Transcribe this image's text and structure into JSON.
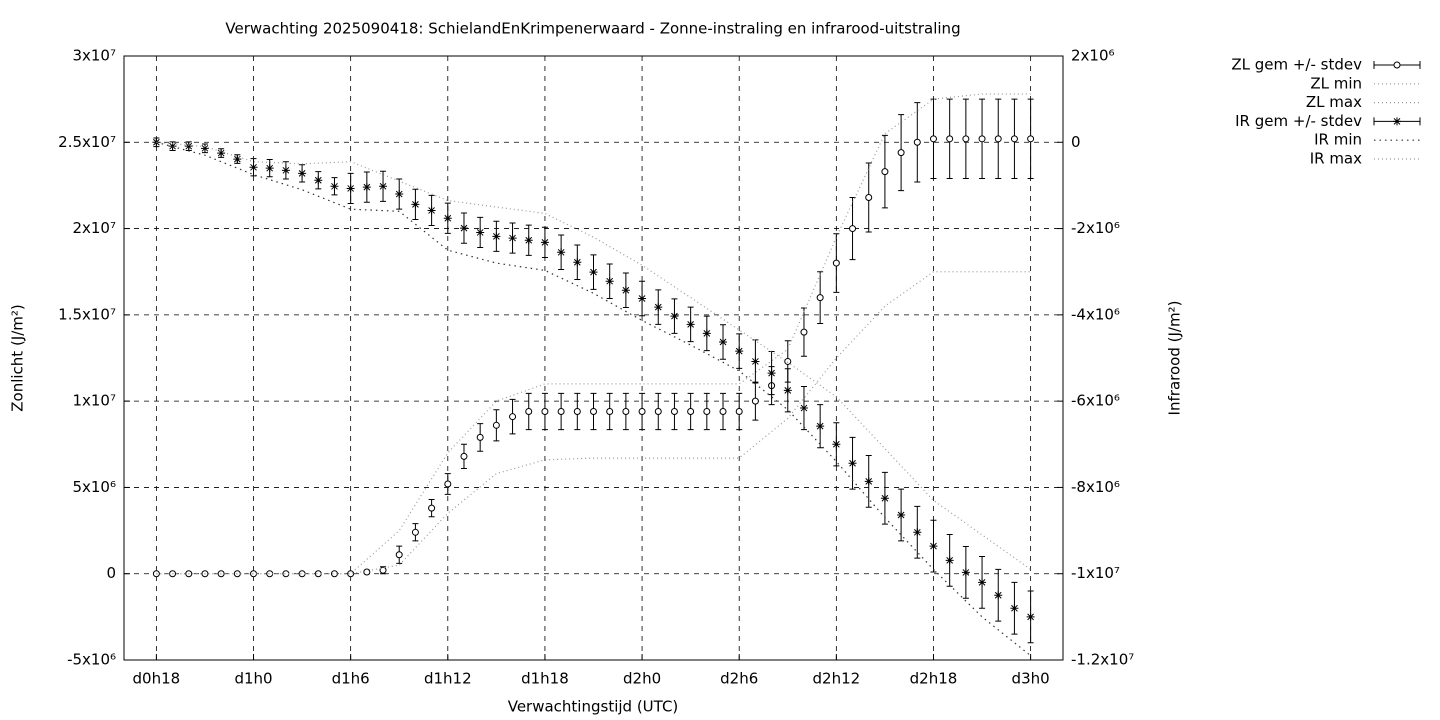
{
  "chart_data": {
    "type": "line",
    "title": "Verwachting 2025090418: SchielandEnKrimpenerwaard - Zonne-instraling en infrarood-uitstraling",
    "x_label": "Verwachtingstijd (UTC)",
    "y_label": "Zonlicht (J/m²)",
    "y2_label": "Infrarood (J/m²)",
    "xlim": [
      16,
      74
    ],
    "xticks": [
      {
        "value": 18,
        "label": "d0h18"
      },
      {
        "value": 24,
        "label": "d1h0"
      },
      {
        "value": 30,
        "label": "d1h6"
      },
      {
        "value": 36,
        "label": "d1h12"
      },
      {
        "value": 42,
        "label": "d1h18"
      },
      {
        "value": 48,
        "label": "d2h0"
      },
      {
        "value": 54,
        "label": "d2h6"
      },
      {
        "value": 60,
        "label": "d2h12"
      },
      {
        "value": 66,
        "label": "d2h18"
      },
      {
        "value": 72,
        "label": "d3h0"
      }
    ],
    "ylim": [
      -5000000,
      30000000
    ],
    "yticks": [
      {
        "value": -5000000,
        "label": "-5x10⁶"
      },
      0,
      {
        "value": 5000000,
        "label": "5x10⁶"
      },
      {
        "value": 10000000,
        "label": "1x10⁷"
      },
      {
        "value": 15000000,
        "label": "1.5x10⁷"
      },
      {
        "value": 20000000,
        "label": "2x10⁷"
      },
      {
        "value": 25000000,
        "label": "2.5x10⁷"
      },
      {
        "value": 30000000,
        "label": "3x10⁷"
      }
    ],
    "y2lim": [
      -12000000,
      2000000
    ],
    "y2ticks": [
      {
        "value": -12000000,
        "label": "-1.2x10⁷"
      },
      {
        "value": -10000000,
        "label": "-1x10⁷"
      },
      {
        "value": -8000000,
        "label": "-8x10⁶"
      },
      {
        "value": -6000000,
        "label": "-6x10⁶"
      },
      {
        "value": -4000000,
        "label": "-4x10⁶"
      },
      {
        "value": -2000000,
        "label": "-2x10⁶"
      },
      0,
      {
        "value": 2000000,
        "label": "2x10⁶"
      }
    ],
    "grid": true,
    "legend": "top-right",
    "series": [
      {
        "name": "ZL gem +/- stdev",
        "color": "#000000",
        "marker": "circle",
        "axis": "y",
        "x": [
          18,
          19,
          20,
          21,
          22,
          23,
          24,
          25,
          26,
          27,
          28,
          29,
          30,
          31,
          32,
          33,
          34,
          35,
          36,
          37,
          38,
          39,
          40,
          41,
          42,
          43,
          44,
          45,
          46,
          47,
          48,
          49,
          50,
          51,
          52,
          53,
          54,
          55,
          56,
          57,
          58,
          59,
          60,
          61,
          62,
          63,
          64,
          65,
          66,
          67,
          68,
          69,
          70,
          71,
          72
        ],
        "values": [
          0,
          0,
          0,
          0,
          0,
          0,
          0,
          0,
          0,
          0,
          0,
          0,
          0,
          100000,
          200000,
          1100000,
          2400000,
          3800000,
          5200000,
          6800000,
          7900000,
          8600000,
          9100000,
          9400000,
          9400000,
          9400000,
          9400000,
          9400000,
          9400000,
          9400000,
          9400000,
          9400000,
          9400000,
          9400000,
          9400000,
          9400000,
          9400000,
          10000000,
          10900000,
          12300000,
          14000000,
          16000000,
          18000000,
          20000000,
          21800000,
          23300000,
          24400000,
          25000000,
          25200000,
          25200000,
          25200000,
          25200000,
          25200000,
          25200000,
          25200000
        ],
        "errors": [
          0,
          0,
          0,
          0,
          0,
          0,
          0,
          0,
          0,
          0,
          0,
          0,
          0,
          100000,
          200000,
          500000,
          500000,
          500000,
          600000,
          700000,
          800000,
          900000,
          1000000,
          1050000,
          1050000,
          1050000,
          1050000,
          1050000,
          1050000,
          1050000,
          1050000,
          1050000,
          1050000,
          1050000,
          1050000,
          1050000,
          1050000,
          1100000,
          1100000,
          1200000,
          1400000,
          1500000,
          1700000,
          1800000,
          2000000,
          2100000,
          2200000,
          2300000,
          2300000,
          2300000,
          2300000,
          2300000,
          2300000,
          2300000,
          2300000
        ]
      },
      {
        "name": "ZL min",
        "color": "#999999",
        "dash": "1 3",
        "axis": "y",
        "x": [
          18,
          21,
          24,
          27,
          30,
          33,
          36,
          39,
          42,
          45,
          48,
          51,
          54,
          57,
          60,
          63,
          66,
          69,
          72
        ],
        "values": [
          0,
          0,
          0,
          0,
          0,
          500000,
          3500000,
          5800000,
          6600000,
          6700000,
          6700000,
          6700000,
          6700000,
          9000000,
          12500000,
          15500000,
          17500000,
          17500000,
          17500000
        ]
      },
      {
        "name": "ZL max",
        "color": "#999999",
        "dash": "1 3",
        "axis": "y",
        "x": [
          18,
          21,
          24,
          27,
          30,
          33,
          36,
          39,
          42,
          45,
          48,
          51,
          54,
          57,
          60,
          63,
          66,
          69,
          72
        ],
        "values": [
          0,
          0,
          0,
          0,
          0,
          2500000,
          7000000,
          10000000,
          11000000,
          11000000,
          11000000,
          11000000,
          11000000,
          13000000,
          19500000,
          25500000,
          27500000,
          27800000,
          27800000
        ]
      },
      {
        "name": "IR gem +/- stdev",
        "color": "#000000",
        "marker": "star",
        "axis": "y2",
        "x": [
          18,
          19,
          20,
          21,
          22,
          23,
          24,
          25,
          26,
          27,
          28,
          29,
          30,
          31,
          32,
          33,
          34,
          35,
          36,
          37,
          38,
          39,
          40,
          41,
          42,
          43,
          44,
          45,
          46,
          47,
          48,
          49,
          50,
          51,
          52,
          53,
          54,
          55,
          56,
          57,
          58,
          59,
          60,
          61,
          62,
          63,
          64,
          65,
          66,
          67,
          68,
          69,
          70,
          71,
          72
        ],
        "values": [
          0,
          -90000,
          -90000,
          -140000,
          -250000,
          -390000,
          -580000,
          -600000,
          -650000,
          -720000,
          -880000,
          -1020000,
          -1070000,
          -1040000,
          -1020000,
          -1200000,
          -1440000,
          -1580000,
          -1760000,
          -1990000,
          -2090000,
          -2180000,
          -2220000,
          -2270000,
          -2320000,
          -2550000,
          -2780000,
          -3010000,
          -3220000,
          -3430000,
          -3620000,
          -3820000,
          -4030000,
          -4220000,
          -4430000,
          -4630000,
          -4840000,
          -5080000,
          -5350000,
          -5750000,
          -6160000,
          -6580000,
          -7000000,
          -7440000,
          -7860000,
          -8250000,
          -8640000,
          -9040000,
          -9360000,
          -9690000,
          -9970000,
          -10200000,
          -10500000,
          -10800000,
          -11000000
        ],
        "errors": [
          100000,
          100000,
          100000,
          100000,
          100000,
          100000,
          200000,
          200000,
          200000,
          200000,
          200000,
          200000,
          350000,
          350000,
          350000,
          350000,
          350000,
          350000,
          350000,
          350000,
          350000,
          350000,
          350000,
          350000,
          350000,
          400000,
          400000,
          400000,
          400000,
          400000,
          400000,
          400000,
          400000,
          400000,
          400000,
          400000,
          400000,
          500000,
          500000,
          500000,
          500000,
          500000,
          500000,
          600000,
          600000,
          600000,
          600000,
          600000,
          600000,
          600000,
          600000,
          600000,
          600000,
          600000,
          600000
        ]
      },
      {
        "name": "IR min",
        "color": "#333333",
        "dash": "1.5 4",
        "axis": "y2",
        "x": [
          18,
          21,
          24,
          27,
          30,
          33,
          36,
          39,
          42,
          45,
          48,
          51,
          54,
          57,
          60,
          63,
          66,
          69,
          72
        ],
        "values": [
          0,
          -300000,
          -750000,
          -1100000,
          -1550000,
          -1600000,
          -2500000,
          -2800000,
          -2970000,
          -3500000,
          -4130000,
          -4700000,
          -5300000,
          -6200000,
          -7400000,
          -8700000,
          -9900000,
          -11000000,
          -11900000
        ]
      },
      {
        "name": "IR max",
        "color": "#999999",
        "dash": "1 3",
        "axis": "y2",
        "x": [
          18,
          21,
          24,
          27,
          30,
          33,
          36,
          39,
          42,
          45,
          48,
          51,
          54,
          57,
          60,
          63,
          66,
          69,
          72
        ],
        "values": [
          0,
          -100000,
          -450000,
          -500000,
          -450000,
          -900000,
          -1350000,
          -1500000,
          -1650000,
          -2200000,
          -2850000,
          -3600000,
          -4350000,
          -5100000,
          -5900000,
          -7100000,
          -8300000,
          -9100000,
          -9900000
        ]
      }
    ]
  }
}
